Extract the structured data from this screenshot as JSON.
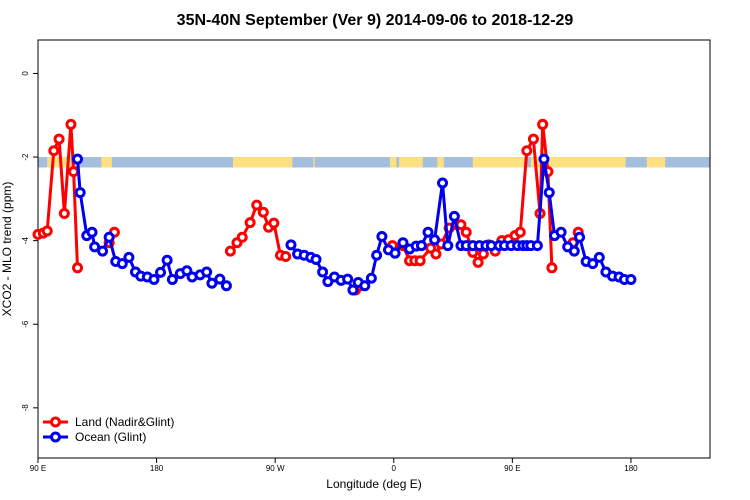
{
  "chart_data": {
    "type": "line",
    "title": "35N-40N September (Ver 9)   2014-09-06 to 2018-12-29",
    "xlabel": "Longitude (deg E)",
    "ylabel": "XCO2 - MLO trend (ppm)",
    "xlim": [
      90,
      600
    ],
    "ylim": [
      -9.2,
      0.8
    ],
    "x_ticks": [
      {
        "value": 90,
        "label": "90 E"
      },
      {
        "value": 180,
        "label": "180"
      },
      {
        "value": 270,
        "label": "90 W"
      },
      {
        "value": 360,
        "label": "0"
      },
      {
        "value": 450,
        "label": "90 E"
      },
      {
        "value": 540,
        "label": "180"
      }
    ],
    "y_ticks": [
      {
        "value": 0,
        "label": "0"
      },
      {
        "value": -2,
        "label": "-2"
      },
      {
        "value": -4,
        "label": "-4"
      },
      {
        "value": -6,
        "label": "-6"
      },
      {
        "value": -8,
        "label": "-8"
      }
    ],
    "legend": {
      "position": "bottom-left"
    },
    "grid": false,
    "land_ocean_band": {
      "y_range": [
        -2.25,
        -2.0
      ],
      "ocean_color": "#a3bede",
      "land_color": "#ffe080",
      "land_segments": [
        [
          97,
          121
        ],
        [
          105,
          110
        ],
        [
          138,
          146
        ],
        [
          238,
          283
        ],
        [
          299,
          300
        ],
        [
          357,
          362
        ],
        [
          364,
          382
        ],
        [
          393,
          398
        ],
        [
          420,
          459
        ],
        [
          464,
          536
        ],
        [
          552,
          566
        ]
      ]
    },
    "series": [
      {
        "name": "Land (Nadir&Glint)",
        "color": "#ff0000",
        "segments": [
          {
            "x": [
              90,
              94,
              97,
              102,
              106,
              110,
              115,
              117,
              120
            ],
            "y": [
              -3.85,
              -3.82,
              -3.77,
              -1.85,
              -1.57,
              -3.35,
              -1.22,
              -2.35,
              -4.65
            ]
          },
          {
            "x": [
              144,
              148
            ],
            "y": [
              -4.05,
              -3.8
            ]
          },
          {
            "x": [
              236,
              241,
              245,
              251,
              256,
              261,
              265,
              269,
              274,
              278
            ],
            "y": [
              -4.25,
              -4.05,
              -3.92,
              -3.57,
              -3.15,
              -3.32,
              -3.68,
              -3.58,
              -4.35,
              -4.38
            ]
          },
          {
            "x": [
              331,
              334
            ],
            "y": [
              -5.18,
              -5.08
            ]
          },
          {
            "x": [
              359,
              367,
              372,
              376,
              380,
              388,
              392,
              396,
              402,
              408,
              411,
              415,
              420,
              424,
              428,
              432,
              437,
              442,
              447,
              452,
              456,
              461,
              466,
              471,
              473
            ],
            "y": [
              -4.12,
              -4.12,
              -4.48,
              -4.48,
              -4.48,
              -4.18,
              -4.32,
              -4.08,
              -3.7,
              -3.62,
              -3.62,
              -3.8,
              -4.28,
              -4.52,
              -4.32,
              -4.1,
              -4.25,
              -4.0,
              -3.98,
              -3.88,
              -3.8,
              -1.85,
              -1.57,
              -3.35,
              -1.22
            ]
          },
          {
            "x": [
              473,
              477,
              480
            ],
            "y": [
              -1.22,
              -2.35,
              -4.65
            ]
          },
          {
            "x": [
              496,
              500
            ],
            "y": [
              -4.05,
              -3.8
            ]
          }
        ]
      },
      {
        "name": "Ocean (Glint)",
        "color": "#0000ee",
        "segments": [
          {
            "x": [
              120,
              122,
              127,
              131,
              133,
              139,
              144,
              149,
              154,
              159,
              164,
              168,
              173,
              178,
              183,
              188,
              192,
              198,
              203,
              207,
              213,
              218,
              222,
              228,
              233
            ],
            "y": [
              -2.05,
              -2.85,
              -3.88,
              -3.8,
              -4.15,
              -4.25,
              -3.92,
              -4.5,
              -4.55,
              -4.4,
              -4.75,
              -4.85,
              -4.87,
              -4.93,
              -4.76,
              -4.47,
              -4.93,
              -4.79,
              -4.72,
              -4.87,
              -4.82,
              -4.75,
              -5.02,
              -4.92,
              -5.08
            ]
          },
          {
            "x": [
              282,
              287,
              292,
              297,
              301,
              306,
              310,
              315,
              320,
              325,
              329,
              333,
              338,
              343,
              347,
              351,
              356,
              361,
              367,
              372,
              377,
              381,
              386,
              391,
              397,
              401,
              406,
              411,
              415,
              420,
              425,
              430,
              434,
              440,
              444,
              449,
              454,
              458,
              461,
              464,
              469,
              474,
              478,
              482,
              487,
              492,
              497,
              501,
              506,
              511,
              516,
              521,
              526,
              531,
              535,
              540
            ],
            "y": [
              -4.1,
              -4.32,
              -4.35,
              -4.4,
              -4.45,
              -4.75,
              -4.98,
              -4.87,
              -4.95,
              -4.92,
              -5.18,
              -5.0,
              -5.08,
              -4.9,
              -4.35,
              -3.9,
              -4.22,
              -4.3,
              -4.05,
              -4.2,
              -4.13,
              -4.12,
              -3.8,
              -3.98,
              -2.62,
              -4.12,
              -3.42,
              -4.12,
              -4.12,
              -4.12,
              -4.12,
              -4.12,
              -4.12,
              -4.12,
              -4.12,
              -4.12,
              -4.12,
              -4.12,
              -4.12,
              -4.12,
              -4.12,
              -2.05,
              -2.85,
              -3.88,
              -3.8,
              -4.15,
              -4.25,
              -3.92,
              -4.5,
              -4.55,
              -4.4,
              -4.75,
              -4.85,
              -4.87,
              -4.93,
              -4.93
            ]
          }
        ]
      }
    ]
  }
}
